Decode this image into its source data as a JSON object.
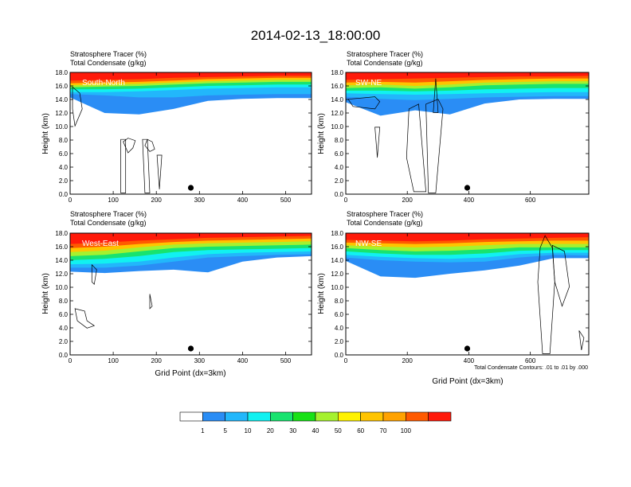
{
  "figure": {
    "title": "2014-02-13_18:00:00",
    "subtitle_line1": "Stratosphere Tracer   (%)",
    "subtitle_line2": "Total Condensate   (g/kg)",
    "xlabel": "Grid Point (dx=3km)",
    "ylabel": "Height (km)",
    "contour_note": "Total Condensate Contours: .01 to .01 by .000"
  },
  "colorbar": {
    "labels": [
      "1",
      "5",
      "10",
      "20",
      "30",
      "40",
      "50",
      "60",
      "70",
      "100"
    ],
    "colors": [
      "#ffffff",
      "#2a8df5",
      "#22b7fb",
      "#11f1f1",
      "#18e36f",
      "#18e116",
      "#a5f12f",
      "#fff200",
      "#ffc400",
      "#ffa200",
      "#ff5a00",
      "#ff1a0a"
    ]
  },
  "chart_data": [
    {
      "type": "heatmap",
      "panel_label": "South-North",
      "xlim": [
        0,
        560
      ],
      "xticks": [
        "0",
        "100",
        "200",
        "300",
        "400",
        "500"
      ],
      "ylim": [
        0,
        18
      ],
      "yticks": [
        "0.0",
        "2.0",
        "4.0",
        "6.0",
        "8.0",
        "10.0",
        "12.0",
        "14.0",
        "16.0",
        "18.0"
      ],
      "tracer_layers": [
        {
          "level": "100",
          "base_km": [
            16.8,
            16.9,
            17.0,
            17.2,
            17.3,
            17.4,
            17.5,
            17.5
          ]
        },
        {
          "level": "70",
          "base_km": [
            16.4,
            16.5,
            16.6,
            16.8,
            17.0,
            17.1,
            17.2,
            17.2
          ]
        },
        {
          "level": "60",
          "base_km": [
            16.1,
            16.2,
            16.3,
            16.5,
            16.7,
            16.8,
            16.9,
            16.9
          ]
        },
        {
          "level": "40",
          "base_km": [
            15.8,
            15.9,
            16.0,
            16.2,
            16.4,
            16.5,
            16.6,
            16.6
          ]
        },
        {
          "level": "20",
          "base_km": [
            15.5,
            15.5,
            15.6,
            15.8,
            16.0,
            16.1,
            16.2,
            16.2
          ]
        },
        {
          "level": "10",
          "base_km": [
            15.1,
            15.1,
            15.2,
            15.4,
            15.6,
            15.7,
            15.8,
            15.8
          ]
        },
        {
          "level": "5",
          "base_km": [
            14.8,
            14.6,
            14.3,
            14.3,
            14.6,
            14.7,
            14.8,
            14.8
          ]
        },
        {
          "level": "1",
          "base_km": [
            14.3,
            12.0,
            11.8,
            12.6,
            13.8,
            14.1,
            14.2,
            14.2
          ]
        }
      ]
    },
    {
      "type": "heatmap",
      "panel_label": "SW-NE",
      "xlim": [
        0,
        790
      ],
      "xticks": [
        "0",
        "200",
        "400",
        "600"
      ],
      "ylim": [
        0,
        18
      ],
      "yticks": [
        "0.0",
        "2.0",
        "4.0",
        "6.0",
        "8.0",
        "10.0",
        "12.0",
        "14.0",
        "16.0",
        "18.0"
      ],
      "tracer_layers": [
        {
          "level": "100",
          "base_km": [
            16.9,
            17.0,
            17.1,
            17.2,
            17.3,
            17.4,
            17.4,
            17.5
          ]
        },
        {
          "level": "70",
          "base_km": [
            16.5,
            16.6,
            16.5,
            16.7,
            16.9,
            17.0,
            17.1,
            17.1
          ]
        },
        {
          "level": "60",
          "base_km": [
            16.1,
            16.2,
            16.0,
            16.2,
            16.5,
            16.6,
            16.7,
            16.7
          ]
        },
        {
          "level": "40",
          "base_km": [
            15.7,
            15.8,
            15.6,
            15.8,
            16.1,
            16.2,
            16.3,
            16.3
          ]
        },
        {
          "level": "20",
          "base_km": [
            15.3,
            15.3,
            15.2,
            15.3,
            15.5,
            15.6,
            15.7,
            15.7
          ]
        },
        {
          "level": "10",
          "base_km": [
            14.9,
            14.8,
            14.7,
            14.8,
            14.9,
            15.0,
            15.1,
            15.1
          ]
        },
        {
          "level": "5",
          "base_km": [
            14.4,
            14.1,
            13.9,
            14.1,
            14.3,
            14.4,
            14.5,
            14.5
          ]
        },
        {
          "level": "1",
          "base_km": [
            13.6,
            11.6,
            12.4,
            11.8,
            13.4,
            14.0,
            14.1,
            14.1
          ]
        }
      ]
    },
    {
      "type": "heatmap",
      "panel_label": "West-East",
      "xlim": [
        0,
        560
      ],
      "xticks": [
        "0",
        "100",
        "200",
        "300",
        "400",
        "500"
      ],
      "ylim": [
        0,
        18
      ],
      "yticks": [
        "0.0",
        "2.0",
        "4.0",
        "6.0",
        "8.0",
        "10.0",
        "12.0",
        "14.0",
        "16.0",
        "18.0"
      ],
      "tracer_layers": [
        {
          "level": "100",
          "base_km": [
            16.4,
            16.6,
            16.9,
            17.1,
            17.3,
            17.4,
            17.5,
            17.6
          ]
        },
        {
          "level": "70",
          "base_km": [
            15.8,
            16.0,
            16.4,
            16.7,
            16.9,
            17.0,
            17.1,
            17.2
          ]
        },
        {
          "level": "60",
          "base_km": [
            15.2,
            15.4,
            15.9,
            16.3,
            16.5,
            16.6,
            16.7,
            16.8
          ]
        },
        {
          "level": "40",
          "base_km": [
            14.6,
            14.8,
            15.3,
            15.8,
            16.0,
            16.1,
            16.2,
            16.3
          ]
        },
        {
          "level": "20",
          "base_km": [
            14.0,
            14.2,
            14.6,
            15.2,
            15.5,
            15.6,
            15.7,
            15.8
          ]
        },
        {
          "level": "10",
          "base_km": [
            13.4,
            13.5,
            13.8,
            14.4,
            14.9,
            15.1,
            15.2,
            15.3
          ]
        },
        {
          "level": "5",
          "base_km": [
            12.9,
            12.9,
            13.2,
            13.8,
            14.4,
            14.6,
            14.8,
            14.9
          ]
        },
        {
          "level": "1",
          "base_km": [
            12.3,
            12.1,
            12.4,
            12.6,
            12.2,
            13.8,
            14.4,
            14.6
          ]
        }
      ]
    },
    {
      "type": "heatmap",
      "panel_label": "NW-SE",
      "xlim": [
        0,
        790
      ],
      "xticks": [
        "0",
        "200",
        "400",
        "600"
      ],
      "ylim": [
        0,
        18
      ],
      "yticks": [
        "0.0",
        "2.0",
        "4.0",
        "6.0",
        "8.0",
        "10.0",
        "12.0",
        "14.0",
        "16.0",
        "18.0"
      ],
      "tracer_layers": [
        {
          "level": "100",
          "base_km": [
            17.0,
            16.9,
            16.8,
            16.9,
            17.1,
            17.2,
            17.3,
            17.4
          ]
        },
        {
          "level": "70",
          "base_km": [
            16.6,
            16.5,
            16.4,
            16.5,
            16.7,
            16.8,
            16.9,
            16.9
          ]
        },
        {
          "level": "60",
          "base_km": [
            16.2,
            16.0,
            15.9,
            16.0,
            16.2,
            16.4,
            16.4,
            16.4
          ]
        },
        {
          "level": "40",
          "base_km": [
            15.8,
            15.5,
            15.3,
            15.4,
            15.6,
            15.9,
            15.9,
            15.9
          ]
        },
        {
          "level": "20",
          "base_km": [
            15.3,
            15.0,
            14.8,
            14.8,
            15.0,
            15.4,
            15.5,
            15.5
          ]
        },
        {
          "level": "10",
          "base_km": [
            14.8,
            14.5,
            14.3,
            14.2,
            14.4,
            14.9,
            15.1,
            15.1
          ]
        },
        {
          "level": "5",
          "base_km": [
            14.4,
            14.0,
            13.8,
            13.7,
            13.8,
            14.4,
            14.8,
            14.7
          ]
        },
        {
          "level": "1",
          "base_km": [
            13.9,
            11.6,
            11.4,
            12.0,
            12.5,
            13.2,
            14.3,
            14.3
          ]
        }
      ]
    }
  ]
}
